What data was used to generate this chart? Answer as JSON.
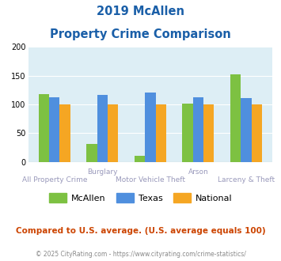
{
  "title_line1": "2019 McAllen",
  "title_line2": "Property Crime Comparison",
  "mcallen": [
    118,
    31,
    10,
    101,
    152
  ],
  "texas": [
    113,
    116,
    121,
    112,
    111
  ],
  "national": [
    100,
    100,
    100,
    100,
    100
  ],
  "color_mcallen": "#7dc142",
  "color_texas": "#4f8fde",
  "color_national": "#f5a623",
  "ylim": [
    0,
    200
  ],
  "yticks": [
    0,
    50,
    100,
    150,
    200
  ],
  "plot_bg": "#ddeef5",
  "legend_labels": [
    "McAllen",
    "Texas",
    "National"
  ],
  "footer_text": "Compared to U.S. average. (U.S. average equals 100)",
  "credit_text": "© 2025 CityRating.com - https://www.cityrating.com/crime-statistics/",
  "title_color": "#1a5fa8",
  "footer_color": "#cc4400",
  "credit_color": "#888888",
  "label_color": "#9999bb",
  "x_top_labels": [
    [
      1,
      "Burglary"
    ],
    [
      3,
      "Arson"
    ]
  ],
  "x_bottom_labels": [
    [
      0,
      "All Property Crime"
    ],
    [
      2,
      "Motor Vehicle Theft"
    ],
    [
      4,
      "Larceny & Theft"
    ]
  ]
}
